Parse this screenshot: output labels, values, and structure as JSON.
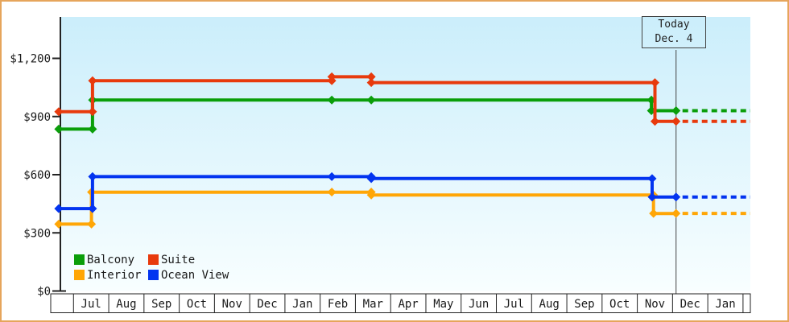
{
  "legend": {
    "position": "bottom-left",
    "items": [
      {
        "label": "Balcony",
        "color": "#0a9e0a"
      },
      {
        "label": "Suite",
        "color": "#e83a0d"
      },
      {
        "label": "Interior",
        "color": "#ffa606"
      },
      {
        "label": "Ocean View",
        "color": "#0334f0"
      }
    ]
  },
  "chart_data": {
    "type": "line",
    "subtype": "step-price-history",
    "title": "",
    "xlabel": "",
    "ylabel": "",
    "grid": false,
    "ylim": [
      0,
      1414
    ],
    "y_tick_interval": 300,
    "y_ticks": [
      {
        "label": "$1,200",
        "value": 1200
      },
      {
        "label": "$900",
        "value": 900
      },
      {
        "label": "$600",
        "value": 600
      },
      {
        "label": "$300",
        "value": 300
      },
      {
        "label": "$0",
        "value": 0
      }
    ],
    "x_months": [
      "Jul",
      "Aug",
      "Sep",
      "Oct",
      "Nov",
      "Dec",
      "Jan",
      "Feb",
      "Mar",
      "Apr",
      "May",
      "Jun",
      "Jul",
      "Aug",
      "Sep",
      "Oct",
      "Nov",
      "Dec",
      "Jan"
    ],
    "x_unit": "months from left edge of first Jul cell",
    "today": {
      "label_line1": "Today",
      "label_line2": "Dec. 4",
      "u": 17.1
    },
    "series": [
      {
        "name": "Balcony",
        "color": "#0a9e0a",
        "dotted_v": 930,
        "points": [
          {
            "u": -0.42,
            "v": 835
          },
          {
            "u": 0.54,
            "v": 835
          },
          {
            "u": 0.54,
            "v": 985
          },
          {
            "u": 7.33,
            "v": 985
          },
          {
            "u": 8.45,
            "v": 985
          },
          {
            "u": 16.4,
            "v": 985
          },
          {
            "u": 16.4,
            "v": 930
          },
          {
            "u": 17.1,
            "v": 930
          }
        ]
      },
      {
        "name": "Suite",
        "color": "#e83a0d",
        "dotted_v": 875,
        "points": [
          {
            "u": -0.42,
            "v": 925
          },
          {
            "u": 0.54,
            "v": 925
          },
          {
            "u": 0.54,
            "v": 1085
          },
          {
            "u": 7.33,
            "v": 1085
          },
          {
            "u": 7.33,
            "v": 1105
          },
          {
            "u": 8.45,
            "v": 1105
          },
          {
            "u": 8.45,
            "v": 1075
          },
          {
            "u": 16.5,
            "v": 1075
          },
          {
            "u": 16.5,
            "v": 875
          },
          {
            "u": 17.1,
            "v": 875
          }
        ]
      },
      {
        "name": "Interior",
        "color": "#ffa606",
        "dotted_v": 400,
        "points": [
          {
            "u": -0.42,
            "v": 345
          },
          {
            "u": 0.51,
            "v": 345
          },
          {
            "u": 0.51,
            "v": 510
          },
          {
            "u": 7.33,
            "v": 510
          },
          {
            "u": 8.45,
            "v": 510
          },
          {
            "u": 8.45,
            "v": 495
          },
          {
            "u": 16.46,
            "v": 495
          },
          {
            "u": 16.46,
            "v": 400
          },
          {
            "u": 17.1,
            "v": 400
          }
        ]
      },
      {
        "name": "Ocean View",
        "color": "#0334f0",
        "dotted_v": 485,
        "points": [
          {
            "u": -0.42,
            "v": 425
          },
          {
            "u": 0.54,
            "v": 425
          },
          {
            "u": 0.54,
            "v": 590
          },
          {
            "u": 7.33,
            "v": 590
          },
          {
            "u": 8.45,
            "v": 590
          },
          {
            "u": 8.45,
            "v": 580
          },
          {
            "u": 16.42,
            "v": 580
          },
          {
            "u": 16.42,
            "v": 485
          },
          {
            "u": 17.1,
            "v": 485
          }
        ]
      }
    ]
  }
}
